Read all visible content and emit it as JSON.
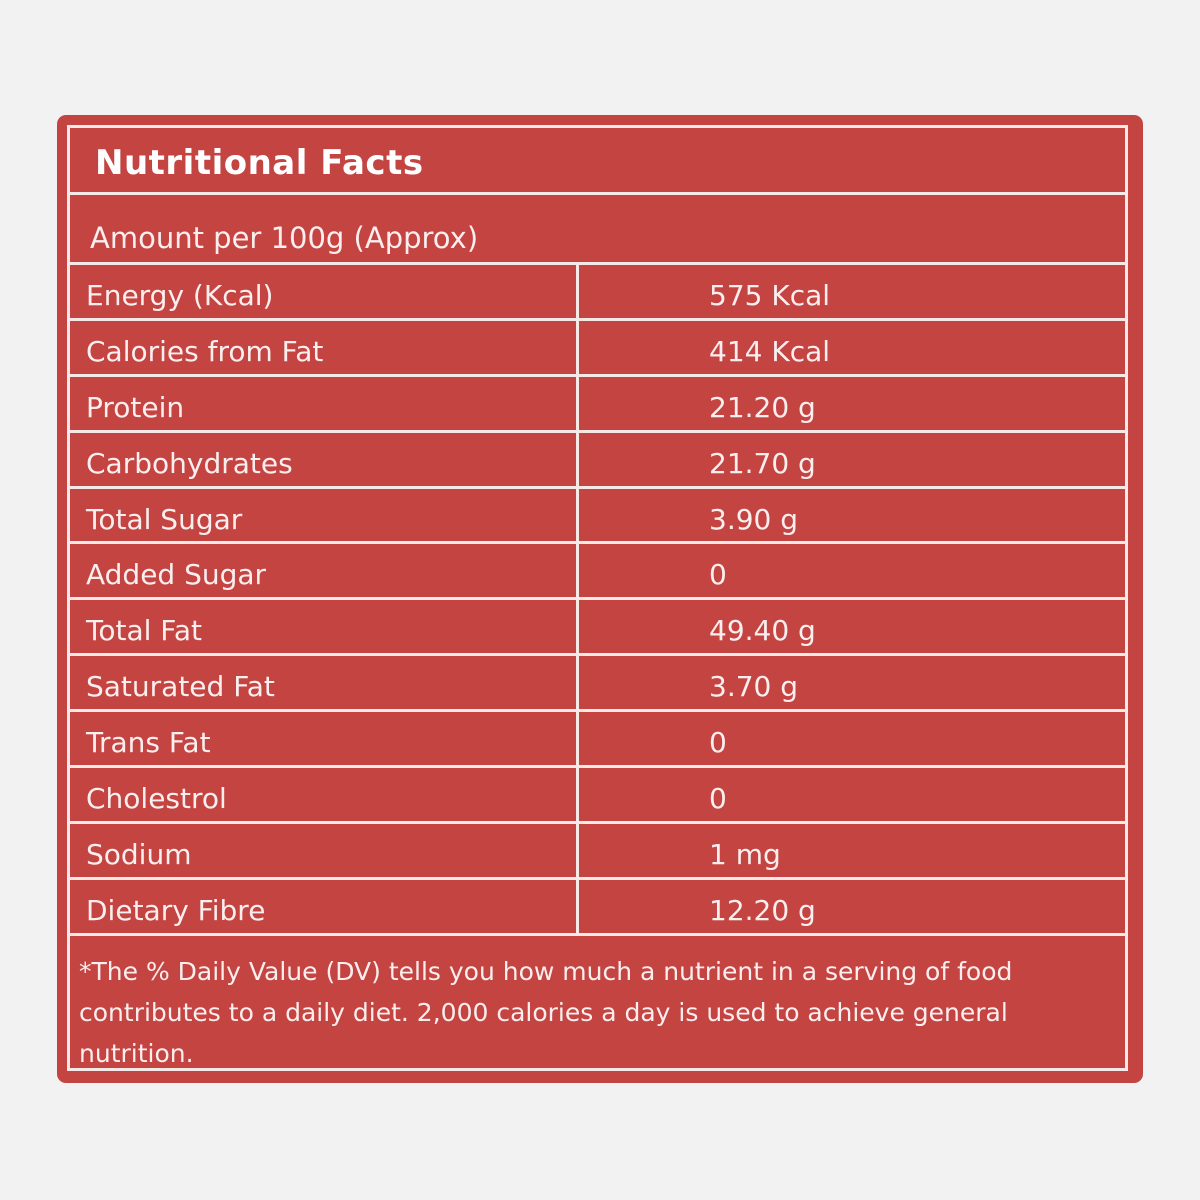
{
  "title": "Nutritional Facts",
  "subtitle": "Amount per 100g (Approx)",
  "colors": {
    "background": "#f2f2f2",
    "card": "#c44442",
    "lines": "#f6e9e8"
  },
  "rows": [
    {
      "name": "Energy (Kcal)",
      "value": "575 Kcal"
    },
    {
      "name": "Calories from Fat",
      "value": "414 Kcal"
    },
    {
      "name": "Protein",
      "value": "21.20 g"
    },
    {
      "name": "Carbohydrates",
      "value": "21.70 g"
    },
    {
      "name": "Total Sugar",
      "value": "3.90 g"
    },
    {
      "name": "Added Sugar",
      "value": "0"
    },
    {
      "name": "Total Fat",
      "value": "49.40 g"
    },
    {
      "name": "Saturated Fat",
      "value": "3.70 g"
    },
    {
      "name": "Trans Fat",
      "value": "0"
    },
    {
      "name": "Cholestrol",
      "value": "0"
    },
    {
      "name": "Sodium",
      "value": "1 mg"
    },
    {
      "name": "Dietary Fibre",
      "value": "12.20 g"
    }
  ],
  "footnote": "*The % Daily Value (DV) tells you how much a nutrient in a serving of food contributes to a daily diet. 2,000 calories a day is used to achieve general nutrition."
}
